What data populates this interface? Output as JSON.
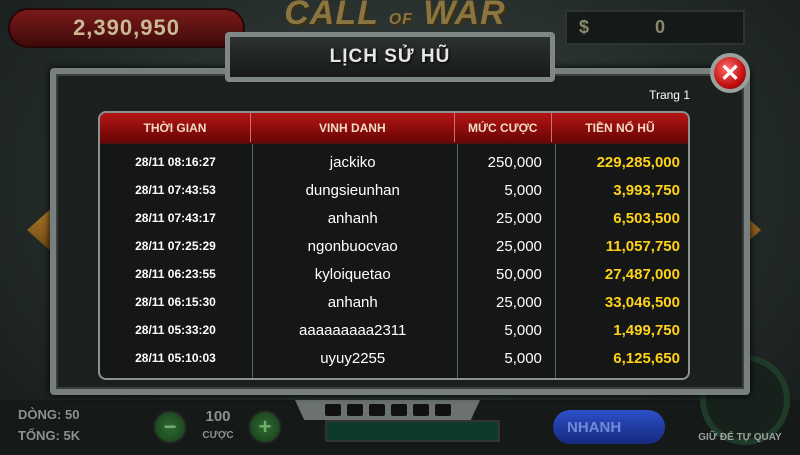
{
  "game": {
    "logo": "CALL OF WAR",
    "logo_main": "CALL",
    "logo_of": "OF",
    "logo_end": "WAR",
    "jackpot_value": "2,390,950",
    "balance_symbol": "$",
    "balance_value": "0"
  },
  "popup": {
    "title": "LỊCH SỬ HŨ",
    "close_label": "✕",
    "page_label": "Trang 1",
    "columns": [
      "THỜI GIAN",
      "VINH DANH",
      "MỨC CƯỢC",
      "TIỀN NỔ HŨ"
    ],
    "rows": [
      {
        "time": "28/11 08:16:27",
        "name": "jackiko",
        "bet": "250,000",
        "prize": "229,285,000"
      },
      {
        "time": "28/11 07:43:53",
        "name": "dungsieunhan",
        "bet": "5,000",
        "prize": "3,993,750"
      },
      {
        "time": "28/11 07:43:17",
        "name": "anhanh",
        "bet": "25,000",
        "prize": "6,503,500"
      },
      {
        "time": "28/11 07:25:29",
        "name": "ngonbuocvao",
        "bet": "25,000",
        "prize": "11,057,750"
      },
      {
        "time": "28/11 06:23:55",
        "name": "kyloiquetao",
        "bet": "50,000",
        "prize": "27,487,000"
      },
      {
        "time": "28/11 06:15:30",
        "name": "anhanh",
        "bet": "25,000",
        "prize": "33,046,500"
      },
      {
        "time": "28/11 05:33:20",
        "name": "aaaaaaaaa2311",
        "bet": "5,000",
        "prize": "1,499,750"
      },
      {
        "time": "28/11 05:10:03",
        "name": "uyuy2255",
        "bet": "5,000",
        "prize": "6,125,650"
      }
    ],
    "prize_color": "#ffd21a",
    "header_color": "#b51515"
  },
  "bottom": {
    "lines_label": "DÒNG:",
    "lines_value": "50",
    "total_label": "TỔNG:",
    "total_value": "5K",
    "bet_value": "100",
    "bet_label": "CƯỢC",
    "minus": "−",
    "plus": "+",
    "fast_label": "NHANH",
    "auto_label": "GIỮ ĐỂ TỰ QUAY"
  }
}
